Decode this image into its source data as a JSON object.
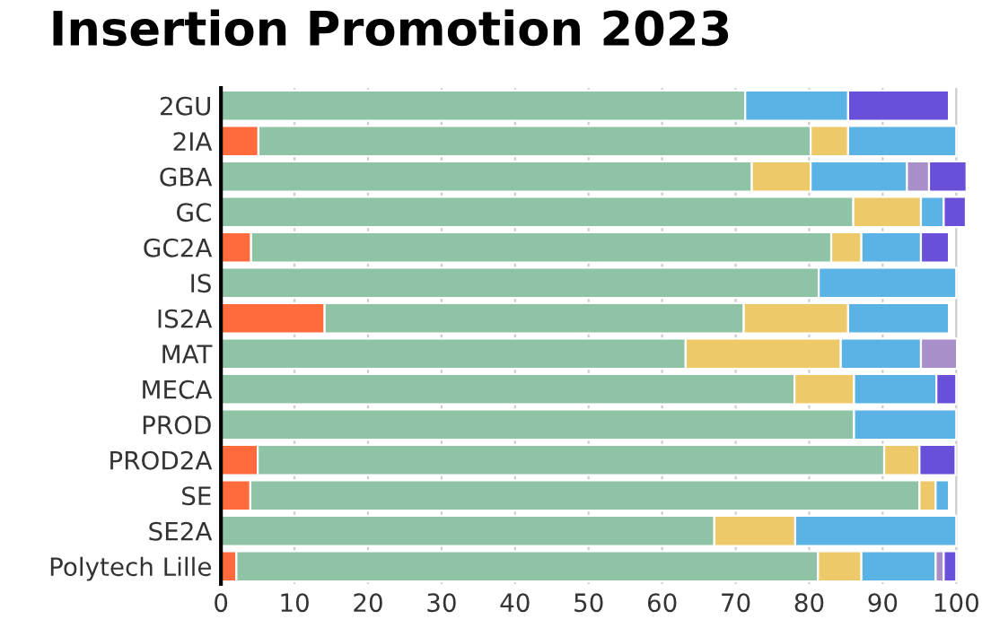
{
  "chart_data": {
    "type": "bar",
    "orientation": "horizontal",
    "stacked": true,
    "title": "Insertion Promotion 2023",
    "categories": [
      "2GU",
      "2IA",
      "GBA",
      "GC",
      "GC2A",
      "IS",
      "IS2A",
      "MAT",
      "MECA",
      "PROD",
      "PROD2A",
      "SE",
      "SE2A",
      "Polytech Lille"
    ],
    "series": [
      {
        "color": "#ff6b3d",
        "values": [
          null,
          5.1,
          null,
          null,
          4.1,
          null,
          14.1,
          null,
          null,
          null,
          5.0,
          4.0,
          null,
          2.1
        ]
      },
      {
        "color": "#8fc3a6",
        "values": [
          71.3,
          75.1,
          72.2,
          86.0,
          78.9,
          81.3,
          57.0,
          63.2,
          78.0,
          86.1,
          85.2,
          91.0,
          67.1,
          79.1
        ]
      },
      {
        "color": "#eec96a",
        "values": [
          null,
          5.1,
          8.0,
          9.2,
          4.1,
          null,
          14.2,
          21.1,
          8.1,
          null,
          4.8,
          2.2,
          11.0,
          5.9
        ]
      },
      {
        "color": "#5bb3e5",
        "values": [
          14.0,
          14.7,
          13.1,
          3.1,
          8.1,
          18.7,
          13.7,
          10.9,
          11.2,
          13.9,
          null,
          1.8,
          21.9,
          10.1
        ]
      },
      {
        "color": "#a98fc9",
        "values": [
          null,
          null,
          3.0,
          null,
          null,
          null,
          null,
          4.9,
          null,
          null,
          null,
          null,
          null,
          1.1
        ]
      },
      {
        "color": "#6a4fd8",
        "values": [
          13.7,
          null,
          5.1,
          3.0,
          3.8,
          null,
          null,
          null,
          2.7,
          null,
          4.9,
          null,
          null,
          1.7
        ]
      }
    ],
    "xlim": [
      0,
      101.5
    ],
    "xticks": [
      0,
      10,
      20,
      30,
      40,
      50,
      60,
      70,
      80,
      90,
      100
    ],
    "grid": "x",
    "legend": false
  }
}
